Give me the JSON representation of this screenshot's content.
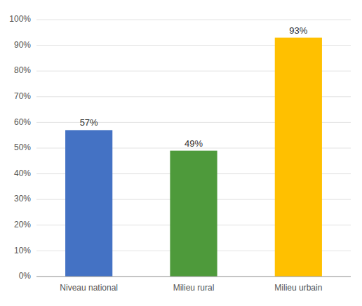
{
  "chart_data": {
    "type": "bar",
    "categories": [
      "Niveau national",
      "Milieu rural",
      "Milieu urbain"
    ],
    "values": [
      0.57,
      0.49,
      0.93
    ],
    "value_labels": [
      "57%",
      "49%",
      "93%"
    ],
    "data_labels": true,
    "colors": [
      "#4472C4",
      "#4E9A3B",
      "#FFC000"
    ],
    "ylim": [
      0,
      1.0
    ],
    "yticks": [
      {
        "value": 0.0,
        "label": "0%"
      },
      {
        "value": 0.1,
        "label": "10%"
      },
      {
        "value": 0.2,
        "label": "20%"
      },
      {
        "value": 0.3,
        "label": "30%"
      },
      {
        "value": 0.4,
        "label": "40%"
      },
      {
        "value": 0.5,
        "label": "50%"
      },
      {
        "value": 0.6,
        "label": "60%"
      },
      {
        "value": 0.7,
        "label": "70%"
      },
      {
        "value": 0.8,
        "label": "80%"
      },
      {
        "value": 0.9,
        "label": "90%"
      },
      {
        "value": 1.0,
        "label": "100%"
      }
    ],
    "grid": true
  }
}
